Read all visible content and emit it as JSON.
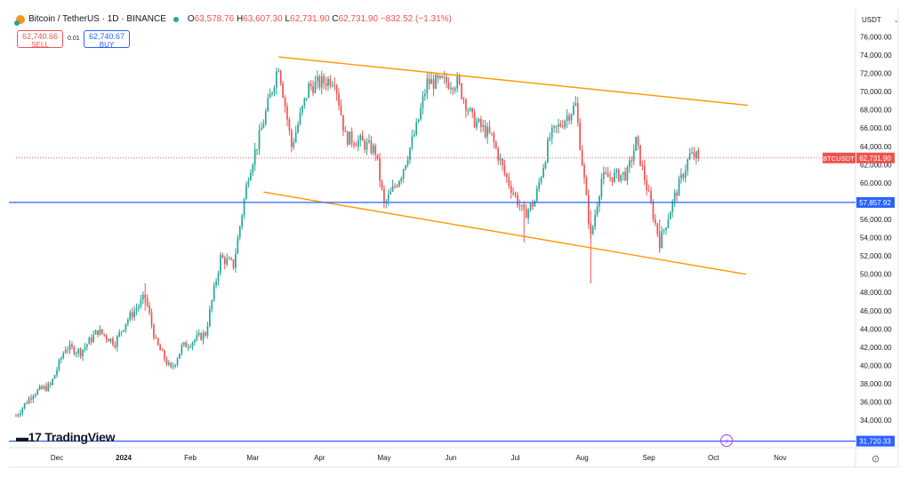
{
  "header": {
    "symbol": "Bitcoin / TetherUS · 1D · BINANCE",
    "open_label": "O",
    "open": "63,578.76",
    "high_label": "H",
    "high": "63,607.30",
    "low_label": "L",
    "low": "62,731.90",
    "close_label": "C",
    "close": "62,731.90",
    "change": "−832.52 (−1.31%)"
  },
  "trade": {
    "sell_price": "62,740.66",
    "sell_label": "SELL",
    "spread": "0.01",
    "buy_price": "62,740.67",
    "buy_label": "BUY"
  },
  "currency": "USDT",
  "brand": "TradingView",
  "colors": {
    "up": "#26a69a",
    "down": "#ef5350",
    "channel": "#ff9800",
    "hline": "#2962ff"
  },
  "chart_data": {
    "type": "candlestick",
    "y_ticks": [
      "76,000.00",
      "74,000.00",
      "72,000.00",
      "70,000.00",
      "68,000.00",
      "66,000.00",
      "64,000.00",
      "62,000.00",
      "60,000.00",
      "58,000.00",
      "56,000.00",
      "54,000.00",
      "52,000.00",
      "50,000.00",
      "48,000.00",
      "46,000.00",
      "44,000.00",
      "42,000.00",
      "40,000.00",
      "38,000.00",
      "36,000.00",
      "34,000.00"
    ],
    "x_ticks": [
      "Dec",
      "2024",
      "Feb",
      "Mar",
      "Apr",
      "May",
      "Jun",
      "Jul",
      "Aug",
      "Sep",
      "Oct",
      "Nov"
    ],
    "ylim": [
      31000,
      77500
    ],
    "xlim": [
      "2023-11-12",
      "2024-12-06"
    ],
    "current_price": {
      "label": "BTCUSDT",
      "value": "62,731.90"
    },
    "horizontal_lines": [
      {
        "value": "57,857.92"
      },
      {
        "value": "31,720.33"
      }
    ],
    "channel": {
      "upper": {
        "x1": "2024-03-13",
        "y1": 73800,
        "x2": "2024-10-17",
        "y2": 68500
      },
      "lower": {
        "x1": "2024-03-06",
        "y1": 59000,
        "x2": "2024-10-16",
        "y2": 50000
      }
    },
    "close_path": [
      [
        "2023-11-12",
        34500
      ],
      [
        "2023-11-20",
        37000
      ],
      [
        "2023-11-28",
        37800
      ],
      [
        "2023-12-05",
        42000
      ],
      [
        "2023-12-12",
        41500
      ],
      [
        "2023-12-20",
        43800
      ],
      [
        "2023-12-28",
        42500
      ],
      [
        "2024-01-02",
        44800
      ],
      [
        "2024-01-11",
        47500
      ],
      [
        "2024-01-16",
        42500
      ],
      [
        "2024-01-23",
        39500
      ],
      [
        "2024-01-28",
        42000
      ],
      [
        "2024-02-08",
        43500
      ],
      [
        "2024-02-15",
        51800
      ],
      [
        "2024-02-21",
        51000
      ],
      [
        "2024-02-28",
        61000
      ],
      [
        "2024-03-04",
        65000
      ],
      [
        "2024-03-13",
        73000
      ],
      [
        "2024-03-19",
        64000
      ],
      [
        "2024-03-27",
        70500
      ],
      [
        "2024-04-08",
        71500
      ],
      [
        "2024-04-13",
        65000
      ],
      [
        "2024-04-20",
        64500
      ],
      [
        "2024-04-27",
        63500
      ],
      [
        "2024-05-01",
        57500
      ],
      [
        "2024-05-09",
        61000
      ],
      [
        "2024-05-16",
        66000
      ],
      [
        "2024-05-21",
        71000
      ],
      [
        "2024-06-04",
        71000
      ],
      [
        "2024-06-11",
        67000
      ],
      [
        "2024-06-20",
        65000
      ],
      [
        "2024-06-26",
        61000
      ],
      [
        "2024-07-05",
        56500
      ],
      [
        "2024-07-10",
        58000
      ],
      [
        "2024-07-17",
        65000
      ],
      [
        "2024-07-29",
        68500
      ],
      [
        "2024-08-05",
        54000
      ],
      [
        "2024-08-10",
        60500
      ],
      [
        "2024-08-22",
        61000
      ],
      [
        "2024-08-26",
        64500
      ],
      [
        "2024-09-02",
        57500
      ],
      [
        "2024-09-06",
        53500
      ],
      [
        "2024-09-13",
        58500
      ],
      [
        "2024-09-20",
        63000
      ],
      [
        "2024-09-24",
        62731.9
      ]
    ]
  }
}
